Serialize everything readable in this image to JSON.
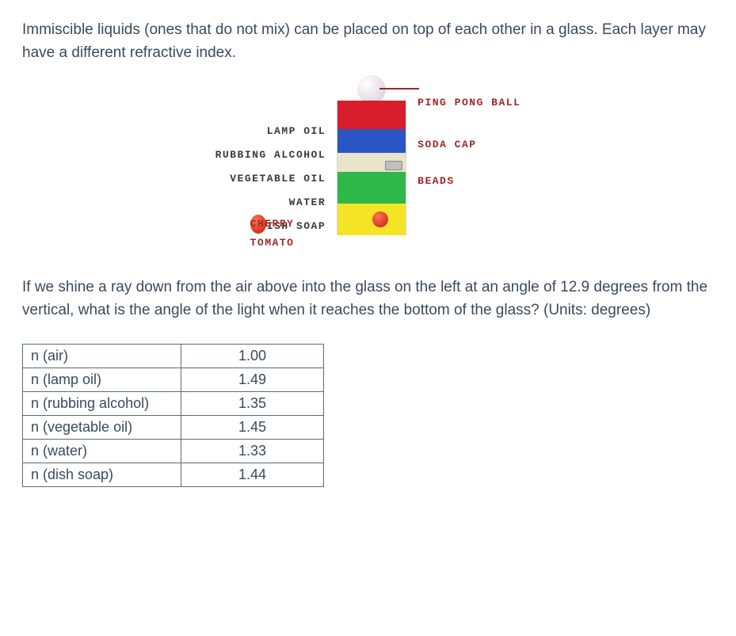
{
  "problem": {
    "intro": "Immiscible liquids (ones that do not mix) can be placed on top of each other in a glass. Each layer may have a different refractive index.",
    "question": "If we shine a ray down from the air above into the glass on the left at an angle of 12.9 degrees from the vertical, what is the angle of the light when it reaches the bottom of the glass? (Units: degrees)"
  },
  "diagram": {
    "left_labels": [
      "LAMP OIL",
      "RUBBING ALCOHOL",
      "VEGETABLE OIL",
      "WATER",
      "DISH SOAP"
    ],
    "right_labels": {
      "pingpong": "PING PONG BALL",
      "soda": "SODA CAP",
      "beads": "BEADS",
      "cherry": "CHERRY TOMATO"
    },
    "layers": [
      {
        "name": "lamp-oil",
        "color": "#d81e2c",
        "h": 36
      },
      {
        "name": "rubbing-alcohol",
        "color": "#2b55c4",
        "h": 30
      },
      {
        "name": "vegetable-oil",
        "color": "#e9e4cc",
        "h": 24
      },
      {
        "name": "water",
        "color": "#2fb84a",
        "h": 40
      },
      {
        "name": "dish-soap",
        "color": "#f4e326",
        "h": 40
      }
    ]
  },
  "table": {
    "rows": [
      {
        "label": "n (air)",
        "value": "1.00"
      },
      {
        "label": "n (lamp oil)",
        "value": "1.49"
      },
      {
        "label": "n (rubbing alcohol)",
        "value": "1.35"
      },
      {
        "label": "n (vegetable oil)",
        "value": "1.45"
      },
      {
        "label": "n (water)",
        "value": "1.33"
      },
      {
        "label": "n (dish soap)",
        "value": "1.44"
      }
    ]
  }
}
